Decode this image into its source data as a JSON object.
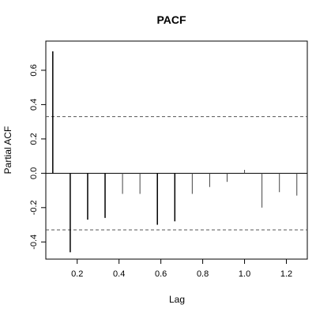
{
  "chart_data": {
    "type": "bar",
    "title": "PACF",
    "xlabel": "Lag",
    "ylabel": "Partial ACF",
    "xlim": [
      0.05,
      1.3
    ],
    "ylim": [
      -0.5,
      0.77
    ],
    "x_ticks": [
      "0.2",
      "0.4",
      "0.6",
      "0.8",
      "1.0",
      "1.2"
    ],
    "y_ticks": [
      "-0.4",
      "-0.2",
      "0.0",
      "0.2",
      "0.4",
      "0.6"
    ],
    "confidence_bound": 0.33,
    "lag": [
      0.0833,
      0.1667,
      0.25,
      0.3333,
      0.4167,
      0.5,
      0.5833,
      0.6667,
      0.75,
      0.8333,
      0.9167,
      1.0,
      1.0833,
      1.1667,
      1.25
    ],
    "values": [
      0.71,
      -0.46,
      -0.27,
      -0.26,
      -0.12,
      -0.12,
      -0.3,
      -0.28,
      -0.12,
      -0.08,
      -0.05,
      0.02,
      -0.2,
      -0.11,
      -0.13
    ],
    "grid": false,
    "colors": {
      "bars": "#000000",
      "frame": "#000000",
      "ci_line": "#555555",
      "zero_line": "#000000"
    }
  }
}
